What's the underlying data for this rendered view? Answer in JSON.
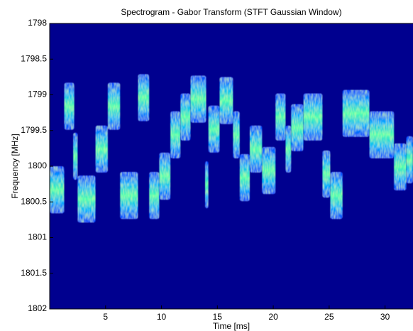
{
  "chart_data": {
    "type": "spectrogram",
    "title": "Spectrogram - Gabor Transform (STFT Gaussian Window)",
    "xlabel": "Time [ms]",
    "ylabel": "Frequency [MHz]",
    "xlim": [
      0,
      32.5
    ],
    "xticks": [
      5,
      10,
      15,
      20,
      25,
      30
    ],
    "ylim": [
      1802,
      1798
    ],
    "yticks": [
      1798,
      1798.5,
      1799,
      1799.5,
      1800,
      1800.5,
      1801,
      1801.5,
      1802
    ],
    "background": "#00008f",
    "colormap": [
      "#0040ff",
      "#00b4ff",
      "#50ffb0"
    ],
    "segments": [
      {
        "t": [
          0,
          1.3
        ],
        "f": [
          1800.0,
          1800.66
        ]
      },
      {
        "t": [
          1.3,
          2.2
        ],
        "f": [
          1798.83,
          1799.49
        ]
      },
      {
        "t": [
          2.1,
          2.5
        ],
        "f": [
          1799.53,
          1800.19
        ]
      },
      {
        "t": [
          2.5,
          4.1
        ],
        "f": [
          1800.13,
          1800.79
        ]
      },
      {
        "t": [
          4.1,
          5.2
        ],
        "f": [
          1799.43,
          1800.09
        ]
      },
      {
        "t": [
          5.2,
          6.3
        ],
        "f": [
          1798.83,
          1799.49
        ]
      },
      {
        "t": [
          6.3,
          7.9
        ],
        "f": [
          1800.08,
          1800.74
        ]
      },
      {
        "t": [
          7.9,
          8.9
        ],
        "f": [
          1798.71,
          1799.37
        ]
      },
      {
        "t": [
          8.9,
          9.8
        ],
        "f": [
          1800.08,
          1800.74
        ]
      },
      {
        "t": [
          9.8,
          10.8
        ],
        "f": [
          1799.81,
          1800.47
        ]
      },
      {
        "t": [
          10.8,
          11.7
        ],
        "f": [
          1799.23,
          1799.89
        ]
      },
      {
        "t": [
          11.7,
          12.6
        ],
        "f": [
          1798.98,
          1799.64
        ]
      },
      {
        "t": [
          12.6,
          14.0
        ],
        "f": [
          1798.73,
          1799.39
        ]
      },
      {
        "t": [
          13.9,
          14.2
        ],
        "f": [
          1799.93,
          1800.59
        ]
      },
      {
        "t": [
          14.2,
          15.2
        ],
        "f": [
          1799.15,
          1799.81
        ]
      },
      {
        "t": [
          15.2,
          16.4
        ],
        "f": [
          1798.75,
          1799.41
        ]
      },
      {
        "t": [
          16.4,
          17.0
        ],
        "f": [
          1799.23,
          1799.89
        ]
      },
      {
        "t": [
          17.0,
          17.9
        ],
        "f": [
          1799.83,
          1800.49
        ]
      },
      {
        "t": [
          17.9,
          19.0
        ],
        "f": [
          1799.43,
          1800.09
        ]
      },
      {
        "t": [
          19.0,
          20.2
        ],
        "f": [
          1799.73,
          1800.39
        ]
      },
      {
        "t": [
          20.2,
          21.1
        ],
        "f": [
          1798.98,
          1799.64
        ]
      },
      {
        "t": [
          21.1,
          21.6
        ],
        "f": [
          1799.43,
          1800.09
        ]
      },
      {
        "t": [
          21.6,
          22.7
        ],
        "f": [
          1799.13,
          1799.79
        ]
      },
      {
        "t": [
          22.7,
          24.4
        ],
        "f": [
          1798.98,
          1799.64
        ]
      },
      {
        "t": [
          24.4,
          25.1
        ],
        "f": [
          1799.78,
          1800.44
        ]
      },
      {
        "t": [
          25.1,
          26.2
        ],
        "f": [
          1800.08,
          1800.74
        ]
      },
      {
        "t": [
          26.2,
          28.6
        ],
        "f": [
          1798.93,
          1799.59
        ]
      },
      {
        "t": [
          28.6,
          30.8
        ],
        "f": [
          1799.23,
          1799.89
        ]
      },
      {
        "t": [
          30.8,
          31.9
        ],
        "f": [
          1799.68,
          1800.34
        ]
      },
      {
        "t": [
          31.9,
          32.5
        ],
        "f": [
          1799.58,
          1800.24
        ]
      }
    ]
  }
}
